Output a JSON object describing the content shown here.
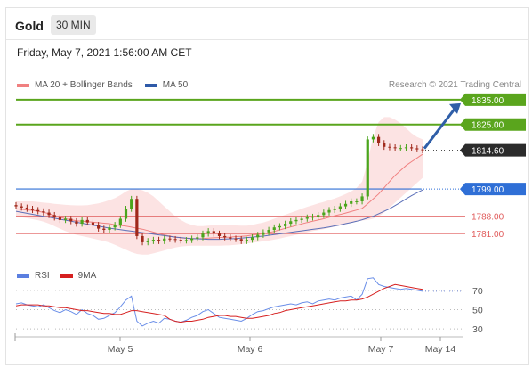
{
  "header": {
    "instrument": "Gold",
    "period": "30 MIN",
    "datetime": "Friday, May 7, 2021 1:56:00 AM CET",
    "credit": "Research © 2021 Trading Central"
  },
  "legend": {
    "ma20_label": "MA 20 + Bollinger Bands",
    "ma50_label": "MA 50",
    "rsi_label": "RSI",
    "ma9_label": "9MA"
  },
  "colors": {
    "bullish": "#4aa51c",
    "bearish": "#a0291b",
    "resistance": "#5aa51d",
    "support_blue": "#2f6fd6",
    "support_red": "#e05a5a",
    "current": "#2b2b2b",
    "ma20": "#f08080",
    "ma50": "#5b6fb8",
    "band": "#fbd9d9",
    "arrow": "#2f5ea8",
    "rsi": "#6a8ee8",
    "ma9": "#d62020"
  },
  "chart_data": [
    {
      "type": "line",
      "title": "Gold",
      "subtitle": "30 MIN",
      "x_tick_labels": [
        "May 5",
        "May 6",
        "May 7",
        "May 14"
      ],
      "levels": [
        {
          "label": "1835.00",
          "value": 1835.0,
          "kind": "resistance"
        },
        {
          "label": "1825.00",
          "value": 1825.0,
          "kind": "resistance"
        },
        {
          "label": "1814.60",
          "value": 1814.6,
          "kind": "current"
        },
        {
          "label": "1799.00",
          "value": 1799.0,
          "kind": "pivot"
        },
        {
          "label": "1788.00",
          "value": 1788.0,
          "kind": "support"
        },
        {
          "label": "1781.00",
          "value": 1781.0,
          "kind": "support"
        }
      ],
      "ylim": [
        1771,
        1840
      ],
      "price_close": [
        1792,
        1791.5,
        1791,
        1790.5,
        1790,
        1789.5,
        1788.5,
        1787.5,
        1786.5,
        1787,
        1786,
        1785,
        1786.5,
        1785.5,
        1784.5,
        1783,
        1782.5,
        1783.5,
        1784.5,
        1787,
        1791,
        1795,
        1780,
        1777.5,
        1778,
        1778.5,
        1778,
        1779,
        1778.8,
        1778.5,
        1778.2,
        1778.4,
        1779,
        1779.5,
        1781,
        1782,
        1781,
        1780,
        1779.5,
        1779,
        1778.8,
        1778,
        1778.5,
        1779.5,
        1780.5,
        1781.5,
        1782.5,
        1783.5,
        1784,
        1785,
        1786,
        1786.5,
        1787,
        1787.5,
        1787.8,
        1788.5,
        1789.5,
        1790.5,
        1791,
        1792,
        1793,
        1794,
        1794,
        1796,
        1819,
        1820,
        1817.5,
        1816,
        1815.8,
        1815.5,
        1815.5,
        1815.8,
        1815.4,
        1815,
        1814.6
      ],
      "ma20": [
        1791,
        1790.8,
        1790.6,
        1790.4,
        1790,
        1789.6,
        1789,
        1788.3,
        1787.6,
        1787,
        1786.6,
        1786.2,
        1786,
        1785.8,
        1785.6,
        1785.4,
        1785.2,
        1785,
        1784.6,
        1784.3,
        1784,
        1783.6,
        1783.2,
        1782.8,
        1782.2,
        1781.6,
        1781,
        1780.5,
        1780,
        1779.6,
        1779.3,
        1779.1,
        1779,
        1778.9,
        1779,
        1779.2,
        1779.3,
        1779.4,
        1779.5,
        1779.6,
        1779.8,
        1779.9,
        1780.1,
        1780.4,
        1780.7,
        1781,
        1781.4,
        1781.9,
        1782.5,
        1783.1,
        1783.7,
        1784.3,
        1784.9,
        1785.5,
        1786,
        1786.5,
        1787,
        1787.6,
        1788.2,
        1788.7,
        1789.3,
        1789.9,
        1790.5,
        1791.2,
        1793,
        1795,
        1797,
        1799.5,
        1802,
        1804.5,
        1806.5,
        1808.5,
        1810,
        1811.5,
        1813
      ],
      "bb_upper": [
        1794,
        1794,
        1794,
        1794,
        1793.8,
        1793.5,
        1793.3,
        1793,
        1792.8,
        1792.6,
        1792.5,
        1792.4,
        1792.4,
        1792.5,
        1792.8,
        1793.2,
        1793.8,
        1794.5,
        1795.3,
        1796.5,
        1798,
        1799,
        1799,
        1798.5,
        1797.5,
        1796,
        1794,
        1792,
        1790,
        1788,
        1786.5,
        1785.3,
        1784.5,
        1784,
        1784,
        1784.2,
        1784.4,
        1784.5,
        1784.5,
        1784.4,
        1784.3,
        1784.2,
        1784.2,
        1784.5,
        1785,
        1785.5,
        1786.2,
        1787,
        1787.8,
        1788.6,
        1789.4,
        1790.2,
        1791,
        1791.8,
        1792.5,
        1793.2,
        1793.8,
        1794.5,
        1795.2,
        1796,
        1797,
        1798,
        1799.5,
        1802,
        1810,
        1820,
        1826,
        1828,
        1828,
        1827,
        1825.5,
        1823.5,
        1821.5,
        1820,
        1819
      ],
      "bb_lower": [
        1788,
        1787.6,
        1787.2,
        1786.8,
        1786.4,
        1785.8,
        1785,
        1784,
        1783,
        1782,
        1781.2,
        1780.5,
        1780,
        1779.5,
        1779,
        1778.5,
        1778,
        1777.4,
        1776.5,
        1775.5,
        1774.5,
        1773.5,
        1772.8,
        1772.5,
        1772.5,
        1773,
        1773.6,
        1774.2,
        1774.8,
        1775.4,
        1775.8,
        1776,
        1776.1,
        1776.1,
        1776.1,
        1776.1,
        1776.1,
        1776.1,
        1776.2,
        1776.3,
        1776.5,
        1776.7,
        1777,
        1777.3,
        1777.6,
        1777.9,
        1778.2,
        1778.6,
        1779,
        1779.5,
        1780,
        1780.5,
        1781,
        1781.5,
        1782,
        1782.4,
        1782.8,
        1783.3,
        1783.8,
        1784.3,
        1784.8,
        1785.3,
        1785.8,
        1786.3,
        1786.5,
        1787,
        1788,
        1789.5,
        1791.5,
        1793.5,
        1795.5,
        1797.5,
        1799.5,
        1801.5,
        1803.5
      ],
      "ma50": [
        1790,
        1789.6,
        1789.2,
        1788.8,
        1788.4,
        1788,
        1787.6,
        1787.2,
        1786.8,
        1786.4,
        1786,
        1785.6,
        1785.2,
        1784.8,
        1784.4,
        1784,
        1783.6,
        1783.2,
        1782.9,
        1782.6,
        1782.3,
        1782,
        1781.7,
        1781.4,
        1781.1,
        1780.8,
        1780.5,
        1780.2,
        1779.9,
        1779.6,
        1779.4,
        1779.2,
        1779,
        1778.9,
        1778.8,
        1778.7,
        1778.7,
        1778.7,
        1778.8,
        1778.9,
        1779,
        1779.2,
        1779.4,
        1779.6,
        1779.8,
        1780,
        1780.3,
        1780.6,
        1780.9,
        1781.2,
        1781.5,
        1781.8,
        1782.1,
        1782.4,
        1782.7,
        1783,
        1783.3,
        1783.7,
        1784.1,
        1784.5,
        1785,
        1785.5,
        1786,
        1786.6,
        1787.3,
        1788,
        1789,
        1790,
        1791,
        1792.3,
        1793.6,
        1795,
        1796.3,
        1797.5,
        1798.6
      ]
    },
    {
      "type": "line",
      "title": "RSI",
      "ylim": [
        20,
        80
      ],
      "y_ticks": [
        70,
        50,
        30
      ],
      "series": [
        {
          "name": "RSI",
          "values": [
            56,
            57,
            55,
            54,
            53,
            55,
            52,
            49,
            47,
            50,
            48,
            45,
            50,
            46,
            44,
            40,
            41,
            44,
            47,
            53,
            60,
            64,
            38,
            33,
            36,
            38,
            36,
            41,
            40,
            38,
            37,
            39,
            42,
            44,
            48,
            50,
            46,
            42,
            41,
            40,
            39,
            38,
            41,
            45,
            48,
            49,
            51,
            53,
            54,
            55,
            56,
            55,
            57,
            58,
            56,
            59,
            60,
            61,
            60,
            62,
            63,
            64,
            60,
            66,
            82,
            83,
            76,
            74,
            73,
            72,
            71,
            72,
            71,
            70,
            69
          ]
        },
        {
          "name": "9MA",
          "values": [
            54,
            55,
            55,
            55,
            55,
            54,
            54,
            53,
            52,
            52,
            51,
            50,
            49,
            49,
            48,
            47,
            46,
            46,
            45,
            45,
            47,
            49,
            49,
            48,
            47,
            46,
            45,
            44,
            40,
            38,
            37,
            38,
            38,
            39,
            40,
            42,
            43,
            44,
            44,
            43,
            43,
            42,
            41,
            41,
            42,
            43,
            44,
            46,
            47,
            49,
            50,
            51,
            52,
            53,
            54,
            55,
            56,
            57,
            58,
            59,
            59,
            60,
            60,
            61,
            63,
            66,
            69,
            72,
            74,
            76,
            75,
            74,
            73,
            72,
            71
          ]
        }
      ]
    }
  ]
}
